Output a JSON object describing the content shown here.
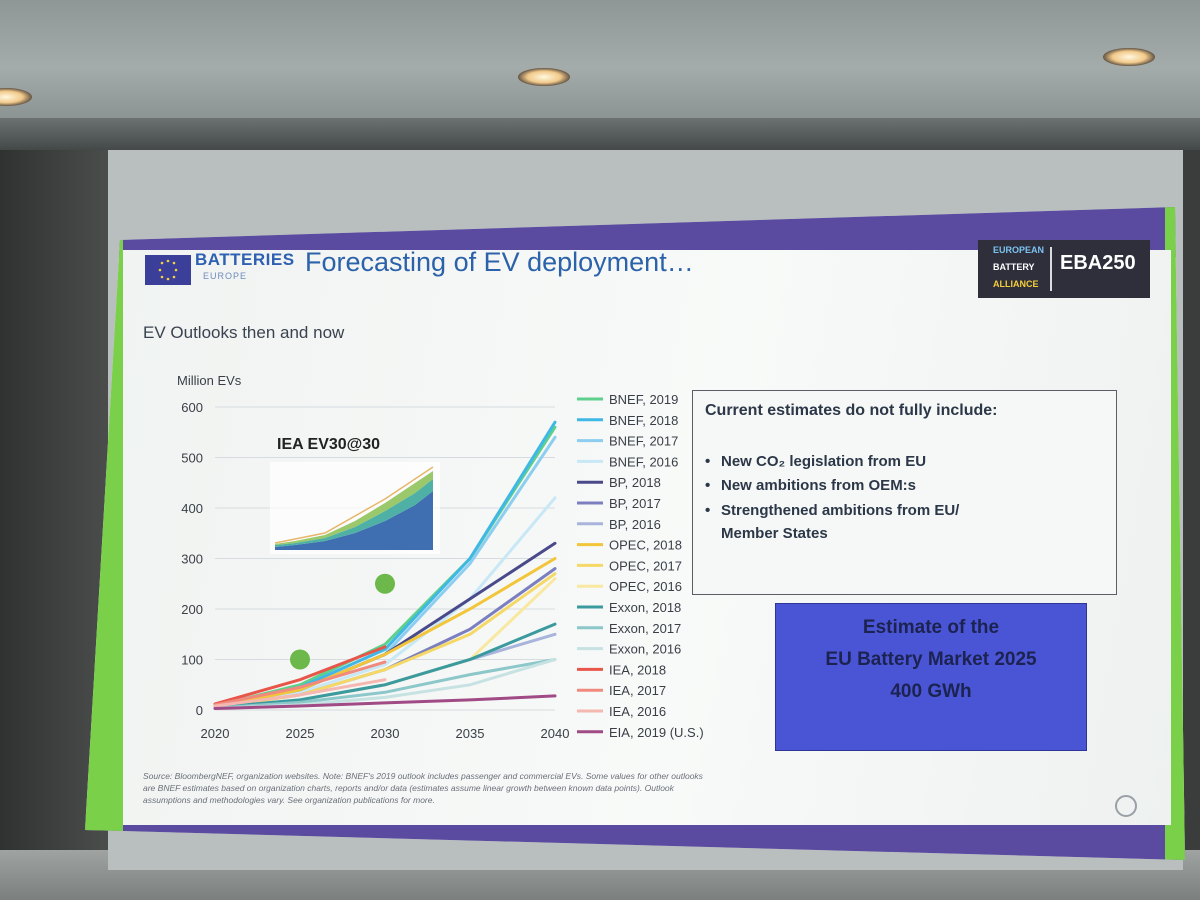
{
  "slide": {
    "logo_text": "BATTERIES",
    "logo_sub": "EUROPE",
    "title": "Forecasting of EV deployment…",
    "eba": {
      "line1": "EUROPEAN",
      "line2": "BATTERY",
      "line3": "ALLIANCE",
      "code": "EBA250"
    },
    "subtitle": "EV Outlooks then and now",
    "estimates": {
      "heading": "Current estimates do not fully include:",
      "items": [
        "New CO₂ legislation from EU",
        "New ambitions from OEM:s",
        "Strengthened ambitions from EU/",
        "Member States"
      ]
    },
    "market": {
      "line1": "Estimate of the",
      "line2": "EU Battery Market 2025",
      "line3": "400 GWh"
    },
    "source_note": "Source: BloombergNEF, organization websites. Note: BNEF's 2019 outlook includes passenger and commercial EVs. Some values for other outlooks are BNEF estimates based on organization charts, reports and/or data (estimates assume linear growth between known data points). Outlook assumptions and methodologies vary. See organization publications for more."
  },
  "chart_data": {
    "type": "line",
    "ylabel": "Million EVs",
    "inset_label": "IEA EV30@30",
    "x_ticks": [
      2020,
      2025,
      2030,
      2035,
      2040
    ],
    "y_ticks": [
      0,
      100,
      200,
      300,
      400,
      500,
      600
    ],
    "xlim": [
      2020,
      2040
    ],
    "ylim": [
      0,
      600
    ],
    "points": [
      {
        "x": 2025,
        "y": 100,
        "color": "#6cb84a"
      },
      {
        "x": 2030,
        "y": 250,
        "color": "#6cb84a"
      }
    ],
    "series": [
      {
        "name": "BNEF, 2019",
        "color": "#5fd08c",
        "x": [
          2020,
          2025,
          2030,
          2035,
          2040
        ],
        "y": [
          8,
          50,
          130,
          300,
          560
        ]
      },
      {
        "name": "BNEF, 2018",
        "color": "#3fb8e6",
        "x": [
          2020,
          2025,
          2030,
          2035,
          2040
        ],
        "y": [
          8,
          45,
          120,
          300,
          570
        ]
      },
      {
        "name": "BNEF, 2017",
        "color": "#8ccdf0",
        "x": [
          2020,
          2025,
          2030,
          2035,
          2040
        ],
        "y": [
          7,
          40,
          110,
          290,
          540
        ]
      },
      {
        "name": "BNEF, 2016",
        "color": "#c9e8f6",
        "x": [
          2020,
          2025,
          2030,
          2035,
          2040
        ],
        "y": [
          6,
          35,
          90,
          220,
          420
        ]
      },
      {
        "name": "BP, 2018",
        "color": "#4a4a8a",
        "x": [
          2020,
          2025,
          2030,
          2035,
          2040
        ],
        "y": [
          8,
          40,
          110,
          220,
          330
        ]
      },
      {
        "name": "BP, 2017",
        "color": "#7b7fc0",
        "x": [
          2020,
          2025,
          2030,
          2035,
          2040
        ],
        "y": [
          6,
          30,
          80,
          160,
          280
        ]
      },
      {
        "name": "BP, 2016",
        "color": "#a8b4dc",
        "x": [
          2020,
          2025,
          2030,
          2035,
          2040
        ],
        "y": [
          5,
          20,
          50,
          100,
          150
        ]
      },
      {
        "name": "OPEC, 2018",
        "color": "#f2c53a",
        "x": [
          2020,
          2025,
          2030,
          2035,
          2040
        ],
        "y": [
          6,
          40,
          110,
          200,
          300
        ]
      },
      {
        "name": "OPEC, 2017",
        "color": "#f5d866",
        "x": [
          2020,
          2025,
          2030,
          2035,
          2040
        ],
        "y": [
          5,
          30,
          80,
          150,
          270
        ]
      },
      {
        "name": "OPEC, 2016",
        "color": "#f8e8a0",
        "x": [
          2020,
          2025,
          2030,
          2035,
          2040
        ],
        "y": [
          4,
          20,
          50,
          100,
          260
        ]
      },
      {
        "name": "Exxon, 2018",
        "color": "#3a9a9e",
        "x": [
          2020,
          2025,
          2030,
          2035,
          2040
        ],
        "y": [
          5,
          20,
          50,
          100,
          170
        ]
      },
      {
        "name": "Exxon, 2017",
        "color": "#8cc7c9",
        "x": [
          2020,
          2025,
          2030,
          2035,
          2040
        ],
        "y": [
          4,
          15,
          35,
          70,
          100
        ]
      },
      {
        "name": "Exxon, 2016",
        "color": "#c6e2e2",
        "x": [
          2020,
          2025,
          2030,
          2035,
          2040
        ],
        "y": [
          3,
          10,
          25,
          50,
          100
        ]
      },
      {
        "name": "IEA, 2018",
        "color": "#e8564a",
        "x": [
          2020,
          2025,
          2030
        ],
        "y": [
          12,
          60,
          125
        ]
      },
      {
        "name": "IEA, 2017",
        "color": "#f08a7e",
        "x": [
          2020,
          2025,
          2030
        ],
        "y": [
          10,
          45,
          95
        ]
      },
      {
        "name": "IEA, 2016",
        "color": "#f5b8b0",
        "x": [
          2020,
          2025,
          2030
        ],
        "y": [
          8,
          30,
          60
        ]
      },
      {
        "name": "EIA, 2019 (U.S.)",
        "color": "#a04a86",
        "x": [
          2020,
          2025,
          2030,
          2035,
          2040
        ],
        "y": [
          3,
          8,
          14,
          20,
          28
        ]
      }
    ]
  }
}
